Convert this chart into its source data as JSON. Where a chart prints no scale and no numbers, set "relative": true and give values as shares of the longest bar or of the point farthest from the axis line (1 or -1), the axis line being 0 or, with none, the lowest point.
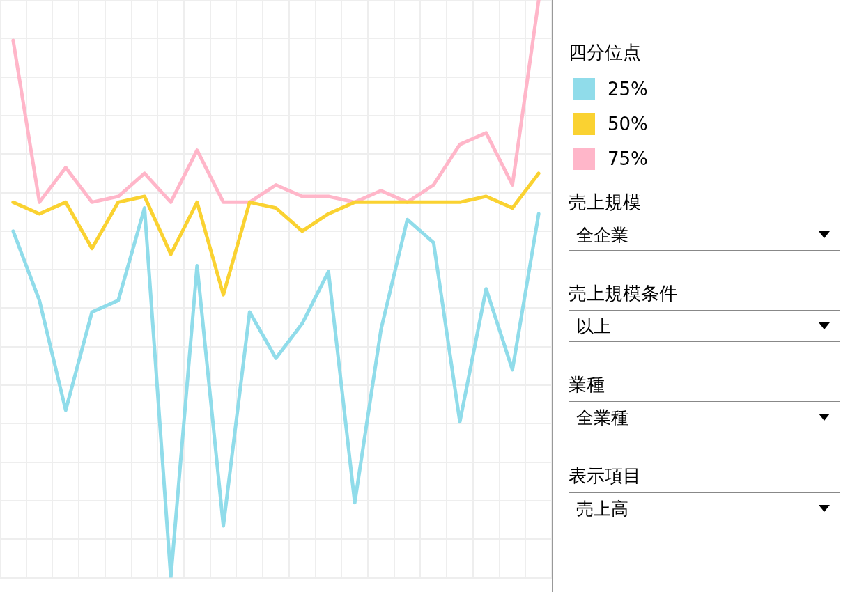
{
  "chart_data": {
    "type": "line",
    "relative": true,
    "legend_title": "四分位点",
    "legend": "right",
    "grid": true,
    "marker": "none",
    "line_style": "solid",
    "categories": [
      null,
      null,
      null,
      null,
      null,
      null,
      null,
      null,
      null,
      null,
      null,
      null,
      null,
      null,
      null,
      null,
      null,
      null,
      null,
      null,
      null
    ],
    "series": [
      {
        "name": "25%",
        "color": "#90dcea",
        "values": [
          0.6,
          0.48,
          0.29,
          0.46,
          0.48,
          0.64,
          0,
          0.54,
          0.09,
          0.46,
          0.38,
          0.44,
          0.53,
          0.13,
          0.43,
          0.62,
          0.58,
          0.27,
          0.5,
          0.36,
          0.63
        ]
      },
      {
        "name": "50%",
        "color": "#fad231",
        "values": [
          0.65,
          0.63,
          0.65,
          0.57,
          0.65,
          0.66,
          0.56,
          0.65,
          0.49,
          0.65,
          0.64,
          0.6,
          0.63,
          0.65,
          0.65,
          0.65,
          0.65,
          0.65,
          0.66,
          0.64,
          0.7
        ]
      },
      {
        "name": "75%",
        "color": "#ffb6c9",
        "values": [
          0.93,
          0.65,
          0.71,
          0.65,
          0.66,
          0.7,
          0.65,
          0.74,
          0.65,
          0.65,
          0.68,
          0.66,
          0.66,
          0.65,
          0.67,
          0.65,
          0.68,
          0.75,
          0.77,
          0.68,
          1
        ]
      }
    ],
    "annotations": [
      "売上規模",
      "全企業",
      "売上規模条件",
      "以上",
      "業種",
      "全業種",
      "表示項目",
      "売上高"
    ]
  }
}
